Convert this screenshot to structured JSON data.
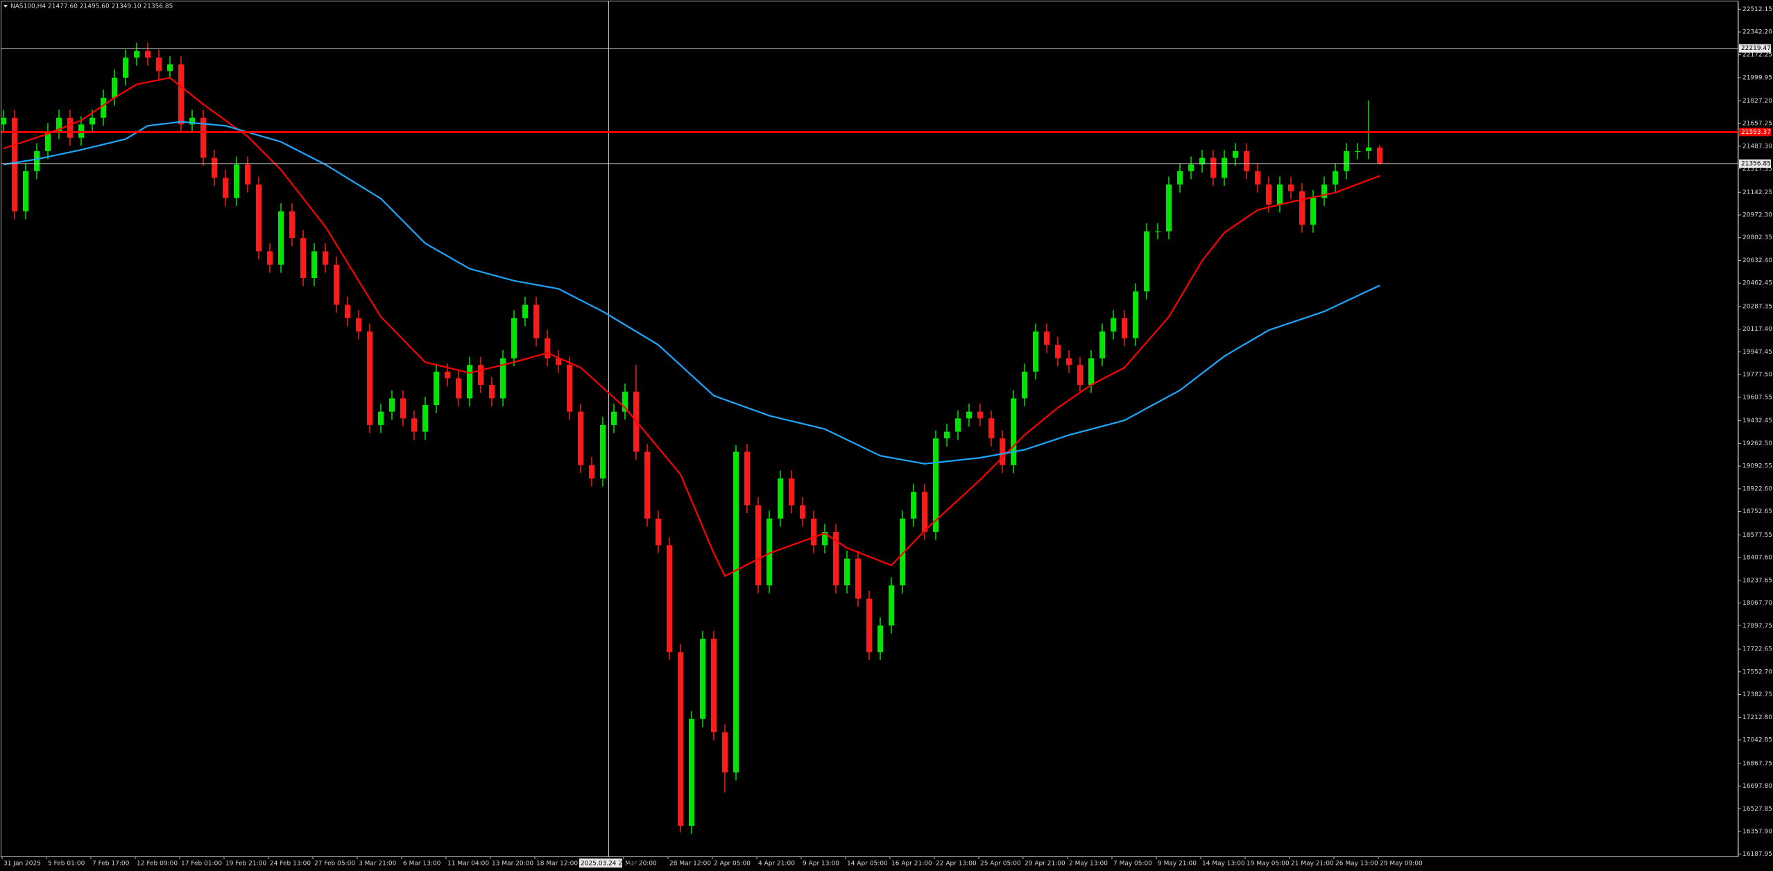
{
  "chart_data": {
    "type": "candlestick",
    "symbol_label": "NAS100,H4  21477.60 21495.60 21349.10 21356.85",
    "up_color": "#00e600",
    "down_color": "#ff1a1a",
    "open": [
      21650,
      21700,
      21000,
      21300,
      21450,
      21600,
      21700,
      21550,
      21650,
      21700,
      21850,
      22000,
      22150,
      22200,
      22150,
      22050,
      22100,
      21650,
      21700,
      21400,
      21250,
      21100,
      21350,
      21200,
      20700,
      20600,
      21000,
      20800,
      20500,
      20700,
      20600,
      20300,
      20200,
      20100,
      19400,
      19500,
      19600,
      19450,
      19350,
      19550,
      19800,
      19750,
      19600,
      19850,
      19700,
      19600,
      19900,
      20200,
      20300,
      20050,
      19900,
      19850,
      19500,
      19100,
      19000,
      19400,
      19500,
      19650,
      19200,
      18700,
      18500,
      17700,
      16400,
      17200,
      17800,
      17100,
      16800,
      19200,
      18800,
      18200,
      18700,
      19000,
      18800,
      18700,
      18500,
      18600,
      18200,
      18400,
      18100,
      17700,
      17900,
      18200,
      18700,
      18900,
      18600,
      19300,
      19350,
      19450,
      19500,
      19450,
      19300,
      19100,
      19600,
      19800,
      20100,
      20000,
      19900,
      19850,
      19700,
      19900,
      20100,
      20200,
      20050,
      20400,
      20850,
      20850,
      21200,
      21300,
      21350,
      21400,
      21250,
      21400,
      21450,
      21300,
      21200,
      21050,
      21200,
      21150,
      20900,
      21100,
      21200,
      21300,
      21450,
      21450,
      21477.6
    ],
    "high": [
      21760,
      21760,
      21360,
      21510,
      21660,
      21760,
      21760,
      21710,
      21760,
      21910,
      22060,
      22210,
      22260,
      22260,
      22210,
      22160,
      22160,
      21760,
      21760,
      21460,
      21310,
      21410,
      21410,
      21260,
      20760,
      21060,
      21060,
      20860,
      20760,
      20760,
      20660,
      20360,
      20260,
      20160,
      19560,
      19660,
      19660,
      19510,
      19610,
      19860,
      19860,
      19810,
      19910,
      19910,
      19760,
      19960,
      20260,
      20360,
      20360,
      20110,
      19960,
      19910,
      19560,
      19160,
      19460,
      19560,
      19710,
      19850,
      19260,
      18760,
      18560,
      17760,
      17260,
      17860,
      17860,
      17160,
      19250,
      19260,
      18860,
      18760,
      19060,
      19060,
      18860,
      18760,
      18660,
      18660,
      18460,
      18460,
      18160,
      17960,
      18260,
      18760,
      18960,
      18960,
      19360,
      19410,
      19510,
      19560,
      19560,
      19510,
      19360,
      19660,
      19860,
      20160,
      20160,
      20060,
      19960,
      19910,
      19960,
      20160,
      20260,
      20260,
      20460,
      20910,
      20910,
      21260,
      21360,
      21410,
      21460,
      21460,
      21460,
      21510,
      21510,
      21360,
      21260,
      21260,
      21260,
      21210,
      21160,
      21260,
      21360,
      21510,
      21510,
      21830,
      21495.6
    ],
    "low": [
      21590,
      20940,
      20940,
      21240,
      21390,
      21540,
      21490,
      21490,
      21590,
      21640,
      21790,
      21940,
      22090,
      22090,
      21990,
      21990,
      21590,
      21590,
      21340,
      21190,
      21040,
      21040,
      21140,
      20640,
      20540,
      20540,
      20740,
      20440,
      20440,
      20540,
      20240,
      20140,
      20040,
      19340,
      19340,
      19440,
      19390,
      19290,
      19290,
      19490,
      19690,
      19540,
      19540,
      19640,
      19540,
      19540,
      19840,
      20140,
      19990,
      19840,
      19790,
      19440,
      19040,
      18940,
      18940,
      19340,
      19440,
      19140,
      18640,
      18440,
      17640,
      16350,
      16340,
      17140,
      17040,
      16650,
      16740,
      18740,
      18140,
      18140,
      18640,
      18740,
      18640,
      18440,
      18440,
      18140,
      18140,
      18040,
      17640,
      17640,
      17840,
      18140,
      18640,
      18540,
      18540,
      19240,
      19290,
      19390,
      19390,
      19240,
      19040,
      19040,
      19540,
      19740,
      19940,
      19840,
      19790,
      19640,
      19640,
      19840,
      20040,
      19990,
      19990,
      20340,
      20790,
      20790,
      21140,
      21240,
      21290,
      21190,
      21190,
      21340,
      21240,
      21140,
      20990,
      20990,
      21090,
      20840,
      20840,
      21040,
      21140,
      21240,
      21390,
      21390,
      21349.1
    ],
    "close": [
      21700,
      21000,
      21300,
      21450,
      21600,
      21700,
      21550,
      21650,
      21700,
      21850,
      22000,
      22150,
      22200,
      22150,
      22050,
      22100,
      21650,
      21700,
      21400,
      21250,
      21100,
      21350,
      21200,
      20700,
      20600,
      21000,
      20800,
      20500,
      20700,
      20600,
      20300,
      20200,
      20100,
      19400,
      19500,
      19600,
      19450,
      19350,
      19550,
      19800,
      19750,
      19600,
      19850,
      19700,
      19600,
      19900,
      20200,
      20300,
      20050,
      19900,
      19850,
      19500,
      19100,
      19000,
      19400,
      19500,
      19650,
      19200,
      18700,
      18500,
      17700,
      16400,
      17200,
      17800,
      17100,
      16800,
      19200,
      18800,
      18200,
      18700,
      19000,
      18800,
      18700,
      18500,
      18600,
      18200,
      18400,
      18100,
      17700,
      17900,
      18200,
      18700,
      18900,
      18600,
      19300,
      19350,
      19450,
      19500,
      19450,
      19300,
      19100,
      19600,
      19800,
      20100,
      20000,
      19900,
      19850,
      19700,
      19900,
      20100,
      20200,
      20050,
      20400,
      20850,
      20850,
      21200,
      21300,
      21350,
      21400,
      21250,
      21400,
      21450,
      21300,
      21200,
      21050,
      21200,
      21150,
      20900,
      21100,
      21200,
      21300,
      21450,
      21450,
      21477.6,
      21356.85
    ],
    "series": [
      {
        "color": "#ff0000",
        "x": [
          0,
          4,
          7,
          10,
          12,
          15,
          18,
          22,
          25,
          29,
          34,
          38,
          42,
          46,
          49,
          52,
          56,
          61,
          64,
          65,
          69,
          74,
          76,
          80,
          83,
          88,
          92,
          95,
          98,
          101,
          105,
          108,
          110,
          113,
          116,
          120,
          124
        ],
        "values": [
          21470,
          21580,
          21680,
          21850,
          21950,
          22000,
          21800,
          21560,
          21310,
          20885,
          20210,
          19870,
          19790,
          19870,
          19940,
          19830,
          19530,
          19030,
          18440,
          18270,
          18440,
          18590,
          18480,
          18350,
          18610,
          18990,
          19325,
          19530,
          19700,
          19830,
          20210,
          20630,
          20840,
          21010,
          21070,
          21140,
          21265
        ]
      },
      {
        "color": "#1ea7ff",
        "x": [
          0,
          3,
          7,
          11,
          13,
          16,
          20,
          25,
          29,
          34,
          38,
          42,
          46,
          50,
          54,
          59,
          64,
          69,
          74,
          79,
          83,
          88,
          92,
          96,
          101,
          106,
          110,
          114,
          119,
          124
        ],
        "values": [
          21350,
          21390,
          21460,
          21540,
          21640,
          21670,
          21640,
          21520,
          21350,
          21095,
          20760,
          20570,
          20480,
          20420,
          20250,
          20000,
          19620,
          19470,
          19370,
          19170,
          19110,
          19155,
          19215,
          19325,
          19435,
          19660,
          19915,
          20110,
          20250,
          20445
        ]
      }
    ],
    "ylim": [
      16171,
      22571
    ],
    "yticks": [
      22512.15,
      {
        "value": 22342.2,
        "label": "22342.20"
      },
      22172.25,
      21999.95,
      {
        "value": 21827.2,
        "label": "21827.20"
      },
      21657.25,
      {
        "value": 21487.3,
        "label": "21487.30"
      },
      21317.35,
      21142.25,
      {
        "value": 20972.3,
        "label": "20972.30"
      },
      20802.35,
      {
        "value": 20632.4,
        "label": "20632.40"
      },
      20462.45,
      20287.35,
      {
        "value": 20117.4,
        "label": "20117.40"
      },
      19947.45,
      {
        "value": 19777.5,
        "label": "19777.50"
      },
      19607.55,
      19432.45,
      {
        "value": 19262.5,
        "label": "19262.50"
      },
      19092.55,
      {
        "value": 18922.6,
        "label": "18922.60"
      },
      18752.65,
      18577.55,
      {
        "value": 18407.6,
        "label": "18407.60"
      },
      18237.65,
      {
        "value": 18067.7,
        "label": "18067.70"
      },
      17897.75,
      17722.65,
      {
        "value": 17552.7,
        "label": "17552.70"
      },
      17382.75,
      {
        "value": 17212.8,
        "label": "17212.80"
      },
      17042.85,
      16867.75,
      {
        "value": 16697.8,
        "label": "16697.80"
      },
      16527.85,
      {
        "value": 16357.9,
        "label": "16357.90"
      },
      16187.95
    ],
    "xtick_labels": [
      "31 Jan 2025",
      "5 Feb 01:00",
      "7 Feb 17:00",
      "12 Feb 09:00",
      "17 Feb 01:00",
      "19 Feb 21:00",
      "24 Feb 13:00",
      "27 Feb 05:00",
      "3 Mar 21:00",
      "6 Mar 13:00",
      "11 Mar 04:00",
      "13 Mar 20:00",
      "18 Mar 12:00",
      null,
      "Mar 20:00",
      "28 Mar 12:00",
      "2 Apr 05:00",
      "4 Apr 21:00",
      "9 Apr 13:00",
      "14 Apr 05:00",
      "16 Apr 21:00",
      "22 Apr 13:00",
      "25 Apr 05:00",
      "29 Apr 21:00",
      "2 May 13:00",
      "7 May 05:00",
      "9 May 21:00",
      "14 May 13:00",
      "19 May 05:00",
      "21 May 21:00",
      "26 May 13:00",
      "29 May 09:00"
    ],
    "hlines": [
      {
        "value": 22219.47,
        "color": "#c8c8c8"
      },
      {
        "value": 21593.37,
        "color": "#ff0000"
      },
      {
        "value": 21356.85,
        "color": "#c8c8c8"
      }
    ],
    "crosshair": {
      "time_label": "2025.03.24 20:00"
    }
  }
}
